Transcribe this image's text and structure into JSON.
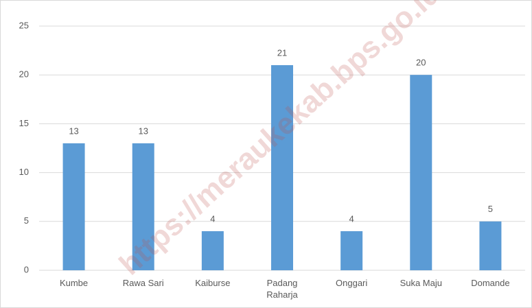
{
  "chart_data": {
    "type": "bar",
    "categories": [
      "Kumbe",
      "Rawa Sari",
      "Kaiburse",
      "Padang Raharja",
      "Onggari",
      "Suka Maju",
      "Domande"
    ],
    "values": [
      13,
      13,
      4,
      21,
      4,
      20,
      5
    ],
    "color": "#5b9bd5",
    "ylim": [
      0,
      25
    ],
    "yticks": [
      0,
      5,
      10,
      15,
      20,
      25
    ],
    "grid": true,
    "watermark": "https://meraukekab.bps.go.id"
  }
}
